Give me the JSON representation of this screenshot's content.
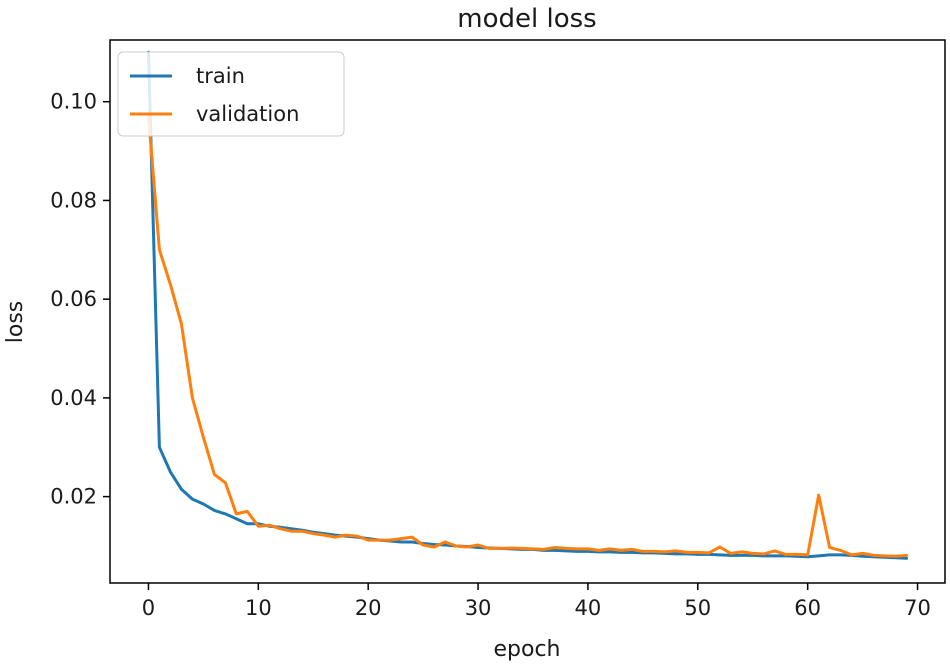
{
  "chart_data": {
    "type": "line",
    "title": "model loss",
    "xlabel": "epoch",
    "ylabel": "loss",
    "xlim": [
      -3.5,
      72.5
    ],
    "ylim": [
      0.0025,
      0.1125
    ],
    "xticks": [
      0,
      10,
      20,
      30,
      40,
      50,
      60,
      70
    ],
    "yticks": [
      0.02,
      0.04,
      0.06,
      0.08,
      0.1
    ],
    "xtick_labels": [
      "0",
      "10",
      "20",
      "30",
      "40",
      "50",
      "60",
      "70"
    ],
    "ytick_labels": [
      "0.02",
      "0.04",
      "0.06",
      "0.08",
      "0.10"
    ],
    "grid": false,
    "legend_position": "top-left",
    "series": [
      {
        "name": "train",
        "color": "#1f77b4",
        "x": [
          0,
          1,
          2,
          3,
          4,
          5,
          6,
          7,
          8,
          9,
          10,
          11,
          12,
          13,
          14,
          15,
          16,
          17,
          18,
          19,
          20,
          21,
          22,
          23,
          24,
          25,
          26,
          27,
          28,
          29,
          30,
          31,
          32,
          33,
          34,
          35,
          36,
          37,
          38,
          39,
          40,
          41,
          42,
          43,
          44,
          45,
          46,
          47,
          48,
          49,
          50,
          51,
          52,
          53,
          54,
          55,
          56,
          57,
          58,
          59,
          60,
          61,
          62,
          63,
          64,
          65,
          66,
          67,
          68,
          69
        ],
        "values": [
          0.11,
          0.03,
          0.025,
          0.0215,
          0.0195,
          0.0185,
          0.0172,
          0.0165,
          0.0155,
          0.0145,
          0.0145,
          0.014,
          0.0138,
          0.0135,
          0.0132,
          0.0128,
          0.0125,
          0.0122,
          0.012,
          0.0118,
          0.0115,
          0.0112,
          0.011,
          0.0108,
          0.0108,
          0.0105,
          0.0103,
          0.0102,
          0.01,
          0.0099,
          0.0097,
          0.0096,
          0.0095,
          0.0094,
          0.0093,
          0.0093,
          0.0091,
          0.0091,
          0.009,
          0.0089,
          0.0089,
          0.0088,
          0.0088,
          0.0087,
          0.0087,
          0.0086,
          0.0086,
          0.0085,
          0.0084,
          0.0084,
          0.0083,
          0.0083,
          0.0082,
          0.0081,
          0.0081,
          0.0081,
          0.008,
          0.008,
          0.008,
          0.0079,
          0.0078,
          0.008,
          0.0082,
          0.0082,
          0.0081,
          0.0079,
          0.0078,
          0.0077,
          0.0076,
          0.0075
        ]
      },
      {
        "name": "validation",
        "color": "#ff7f0e",
        "x": [
          0,
          1,
          2,
          3,
          4,
          5,
          6,
          7,
          8,
          9,
          10,
          11,
          12,
          13,
          14,
          15,
          16,
          17,
          18,
          19,
          20,
          21,
          22,
          23,
          24,
          25,
          26,
          27,
          28,
          29,
          30,
          31,
          32,
          33,
          34,
          35,
          36,
          37,
          38,
          39,
          40,
          41,
          42,
          43,
          44,
          45,
          46,
          47,
          48,
          49,
          50,
          51,
          52,
          53,
          54,
          55,
          56,
          57,
          58,
          59,
          60,
          61,
          62,
          63,
          64,
          65,
          66,
          67,
          68,
          69
        ],
        "values": [
          0.097,
          0.07,
          0.063,
          0.055,
          0.04,
          0.032,
          0.0245,
          0.0228,
          0.0165,
          0.017,
          0.014,
          0.0142,
          0.0135,
          0.013,
          0.013,
          0.0125,
          0.0122,
          0.0118,
          0.0122,
          0.012,
          0.0112,
          0.0112,
          0.0112,
          0.0115,
          0.0118,
          0.0102,
          0.0098,
          0.0108,
          0.01,
          0.0098,
          0.0102,
          0.0095,
          0.0095,
          0.0096,
          0.0095,
          0.0094,
          0.0093,
          0.0097,
          0.0095,
          0.0094,
          0.0094,
          0.0091,
          0.0094,
          0.0091,
          0.0093,
          0.0089,
          0.0089,
          0.0088,
          0.009,
          0.0087,
          0.0087,
          0.0086,
          0.0098,
          0.0085,
          0.0088,
          0.0085,
          0.0084,
          0.009,
          0.0083,
          0.0083,
          0.0082,
          0.0203,
          0.0097,
          0.0091,
          0.0082,
          0.0085,
          0.0081,
          0.008,
          0.0079,
          0.0081
        ]
      }
    ]
  }
}
